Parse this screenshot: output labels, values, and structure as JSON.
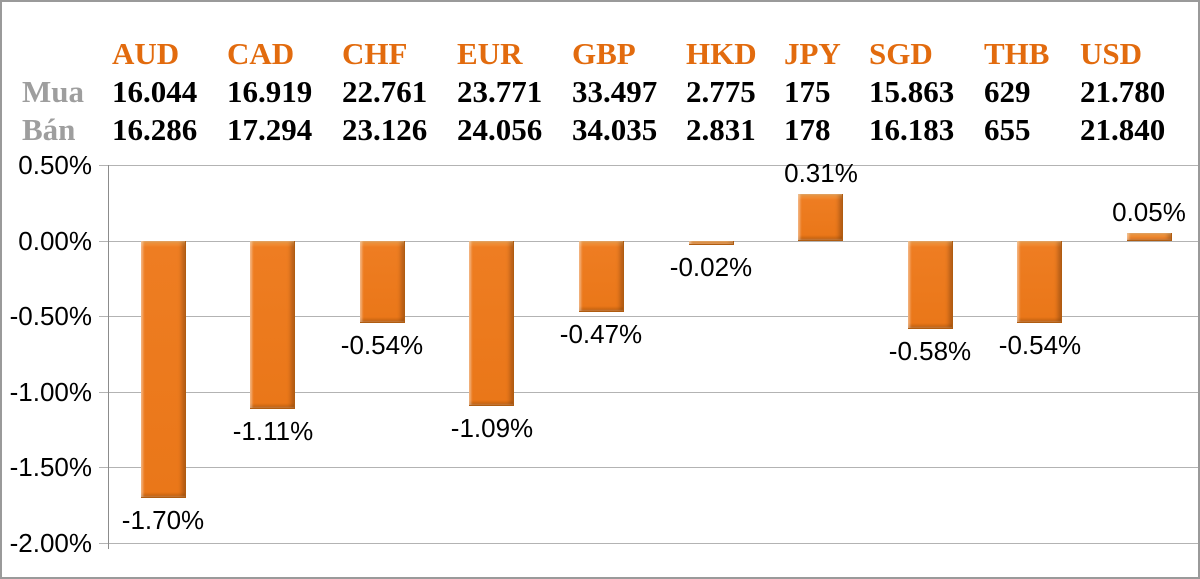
{
  "table": {
    "currencies": [
      "AUD",
      "CAD",
      "CHF",
      "EUR",
      "GBP",
      "HKD",
      "JPY",
      "SGD",
      "THB",
      "USD"
    ],
    "rows": [
      {
        "label": "Mua",
        "values": [
          "16.044",
          "16.919",
          "22.761",
          "23.771",
          "33.497",
          "2.775",
          "175",
          "15.863",
          "629",
          "21.780"
        ]
      },
      {
        "label": "Bán",
        "values": [
          "16.286",
          "17.294",
          "23.126",
          "24.056",
          "34.035",
          "2.831",
          "178",
          "16.183",
          "655",
          "21.840"
        ]
      }
    ]
  },
  "chart_data": {
    "type": "bar",
    "title": "",
    "xlabel": "",
    "ylabel": "",
    "categories": [
      "AUD",
      "CAD",
      "CHF",
      "EUR",
      "GBP",
      "HKD",
      "JPY",
      "SGD",
      "THB",
      "USD"
    ],
    "values": [
      -1.7,
      -1.11,
      -0.54,
      -1.09,
      -0.47,
      -0.02,
      0.31,
      -0.58,
      -0.54,
      0.05
    ],
    "data_labels": [
      "-1.70%",
      "-1.11%",
      "-0.54%",
      "-1.09%",
      "-0.47%",
      "-0.02%",
      "0.31%",
      "-0.58%",
      "-0.54%",
      "0.05%"
    ],
    "y_ticks": [
      "0.50%",
      "0.00%",
      "-0.50%",
      "-1.00%",
      "-1.50%",
      "-2.00%"
    ],
    "y_tick_values": [
      0.5,
      0.0,
      -0.5,
      -1.0,
      -1.5,
      -2.0
    ],
    "ylim": [
      -2.0,
      0.5
    ],
    "grid": true,
    "legend_position": "none"
  },
  "colors": {
    "bar": "#ED7D22",
    "bar_edge": "#B05C10",
    "header_text": "#E26B0E",
    "row_label_text": "#9E9E9E",
    "value_text": "#000000",
    "gridline": "#B3B3B3",
    "axis_line": "#8C8C8C",
    "frame_border": "#9A9A9A",
    "background": "#FFFFFF"
  }
}
